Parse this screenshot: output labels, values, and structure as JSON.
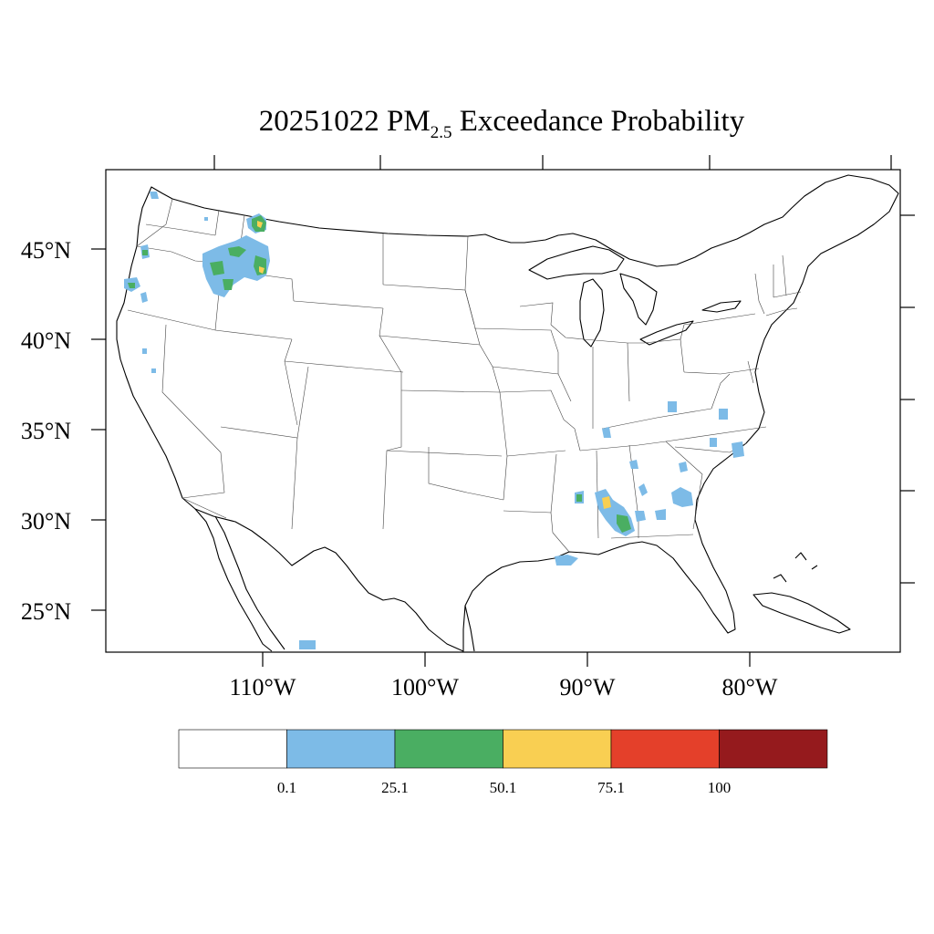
{
  "title": {
    "date": "20251022",
    "pollutant": "PM",
    "pollutant_sub": "2.5",
    "rest": "Exceedance Probability"
  },
  "lat_labels": [
    "45°N",
    "40°N",
    "35°N",
    "30°N",
    "25°N"
  ],
  "lon_labels": [
    "110°W",
    "100°W",
    "90°W",
    "80°W"
  ],
  "legend": {
    "colors": [
      "#ffffff",
      "#7dbbe7",
      "#4aae62",
      "#f9cf52",
      "#e4402a",
      "#951a1d"
    ],
    "labels": [
      "0.1",
      "25.1",
      "50.1",
      "75.1",
      "100"
    ]
  },
  "probability_colors": {
    "low": "#7dbbe7",
    "mid": "#4aae62",
    "high": "#f9cf52"
  }
}
